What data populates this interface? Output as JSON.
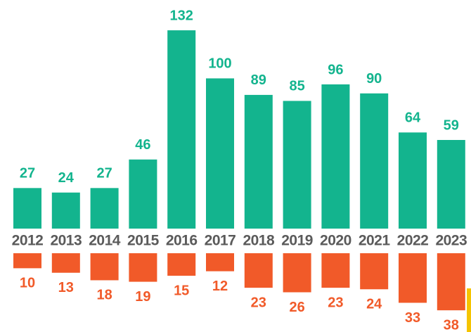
{
  "chart_data": {
    "type": "bar",
    "categories": [
      "2012",
      "2013",
      "2014",
      "2015",
      "2016",
      "2017",
      "2018",
      "2019",
      "2020",
      "2021",
      "2022",
      "2023"
    ],
    "series": [
      {
        "color": "#13b48e",
        "direction": "up",
        "values": [
          27,
          24,
          27,
          46,
          132,
          100,
          89,
          85,
          96,
          90,
          64,
          59
        ]
      },
      {
        "color": "#f15a29",
        "direction": "down",
        "values": [
          10,
          13,
          18,
          19,
          15,
          12,
          23,
          26,
          23,
          24,
          33,
          38
        ]
      }
    ],
    "ylim": [
      0,
      140
    ]
  }
}
